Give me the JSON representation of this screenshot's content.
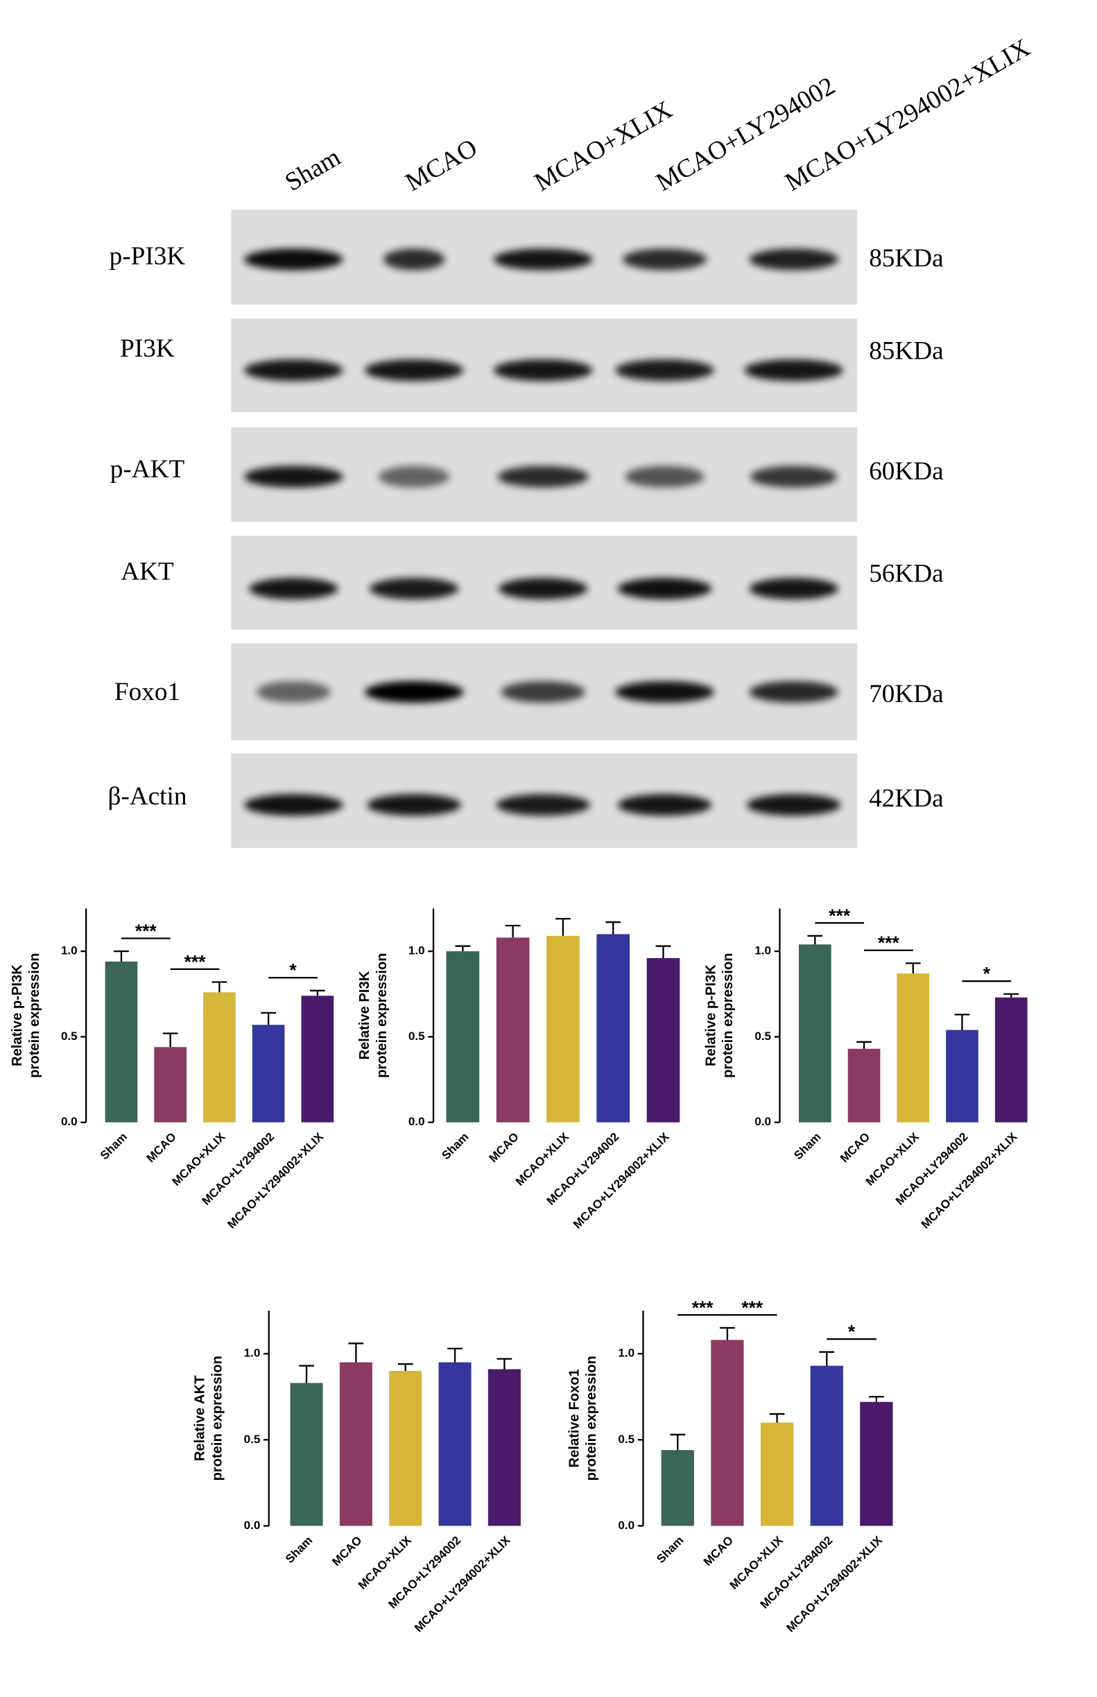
{
  "blot": {
    "lanes": [
      "Sham",
      "MCAO",
      "MCAO+XLIX",
      "MCAO+LY294002",
      "MCAO+LY294002+XLIX"
    ],
    "rows": [
      {
        "protein": "p-PI3K",
        "size": "85KDa"
      },
      {
        "protein": "PI3K",
        "size": "85KDa"
      },
      {
        "protein": "p-AKT",
        "size": "60KDa"
      },
      {
        "protein": "AKT",
        "size": "56KDa"
      },
      {
        "protein": "Foxo1",
        "size": "70KDa"
      },
      {
        "protein": "β-Actin",
        "size": "42KDa"
      }
    ]
  },
  "chart_data": [
    {
      "type": "bar",
      "ylabel": [
        "Relative p-PI3K",
        "protein expression"
      ],
      "categories": [
        "Sham",
        "MCAO",
        "MCAO+XLIX",
        "MCAO+LY294002",
        "MCAO+LY294002+XLIX"
      ],
      "values": [
        0.94,
        0.44,
        0.76,
        0.57,
        0.74
      ],
      "errors": [
        0.06,
        0.08,
        0.06,
        0.07,
        0.03
      ],
      "colors": [
        "#3a6656",
        "#8b3a62",
        "#d6b636",
        "#35379e",
        "#4b1a6b"
      ],
      "ylim": [
        0,
        1.25
      ],
      "yticks": [
        {
          "value": 0,
          "label": "0.0"
        },
        {
          "value": 0.5,
          "label": "0.5"
        },
        {
          "value": 1,
          "label": "1.0"
        }
      ],
      "significance": [
        {
          "label": "***",
          "bars": [
            0,
            1
          ]
        },
        {
          "label": "***",
          "bars": [
            1,
            2
          ]
        },
        {
          "label": "*",
          "bars": [
            3,
            4
          ]
        }
      ]
    },
    {
      "type": "bar",
      "ylabel": [
        "Relative PI3K",
        "protein expression"
      ],
      "categories": [
        "Sham",
        "MCAO",
        "MCAO+XLIX",
        "MCAO+LY294002",
        "MCAO+LY294002+XLIX"
      ],
      "values": [
        1.0,
        1.08,
        1.09,
        1.1,
        0.96
      ],
      "errors": [
        0.03,
        0.07,
        0.1,
        0.07,
        0.07
      ],
      "colors": [
        "#3a6656",
        "#8b3a62",
        "#d6b636",
        "#35379e",
        "#4b1a6b"
      ],
      "ylim": [
        0,
        1.25
      ],
      "yticks": [
        {
          "value": 0,
          "label": "0.0"
        },
        {
          "value": 0.5,
          "label": "0.5"
        },
        {
          "value": 1,
          "label": "1.0"
        }
      ],
      "significance": []
    },
    {
      "type": "bar",
      "ylabel": [
        "Relative p-PI3K",
        "protein expression"
      ],
      "categories": [
        "Sham",
        "MCAO",
        "MCAO+XLIX",
        "MCAO+LY294002",
        "MCAO+LY294002+XLIX"
      ],
      "values": [
        1.04,
        0.43,
        0.87,
        0.54,
        0.73
      ],
      "errors": [
        0.05,
        0.04,
        0.06,
        0.09,
        0.02
      ],
      "colors": [
        "#3a6656",
        "#8b3a62",
        "#d6b636",
        "#35379e",
        "#4b1a6b"
      ],
      "ylim": [
        0,
        1.25
      ],
      "yticks": [
        {
          "value": 0,
          "label": "0.0"
        },
        {
          "value": 0.5,
          "label": "0.5"
        },
        {
          "value": 1,
          "label": "1.0"
        }
      ],
      "significance": [
        {
          "label": "***",
          "bars": [
            0,
            1
          ]
        },
        {
          "label": "***",
          "bars": [
            1,
            2
          ]
        },
        {
          "label": "*",
          "bars": [
            3,
            4
          ]
        }
      ]
    },
    {
      "type": "bar",
      "ylabel": [
        "Relative AKT",
        "protein expression"
      ],
      "categories": [
        "Sham",
        "MCAO",
        "MCAO+XLIX",
        "MCAO+LY294002",
        "MCAO+LY294002+XLIX"
      ],
      "values": [
        0.83,
        0.95,
        0.9,
        0.95,
        0.91
      ],
      "errors": [
        0.1,
        0.11,
        0.04,
        0.08,
        0.06
      ],
      "colors": [
        "#3a6656",
        "#8b3a62",
        "#d6b636",
        "#35379e",
        "#4b1a6b"
      ],
      "ylim": [
        0,
        1.25
      ],
      "yticks": [
        {
          "value": 0,
          "label": "0.0"
        },
        {
          "value": 0.5,
          "label": "0.5"
        },
        {
          "value": 1,
          "label": "1.0"
        }
      ],
      "significance": []
    },
    {
      "type": "bar",
      "ylabel": [
        "Relative Foxo1",
        "protein expression"
      ],
      "categories": [
        "Sham",
        "MCAO",
        "MCAO+XLIX",
        "MCAO+LY294002",
        "MCAO+LY294002+XLIX"
      ],
      "values": [
        0.44,
        1.08,
        0.6,
        0.93,
        0.72
      ],
      "errors": [
        0.09,
        0.07,
        0.05,
        0.08,
        0.03
      ],
      "colors": [
        "#3a6656",
        "#8b3a62",
        "#d6b636",
        "#35379e",
        "#4b1a6b"
      ],
      "ylim": [
        0,
        1.25
      ],
      "yticks": [
        {
          "value": 0,
          "label": "0.0"
        },
        {
          "value": 0.5,
          "label": "0.5"
        },
        {
          "value": 1,
          "label": "1.0"
        }
      ],
      "significance": [
        {
          "label": "***",
          "bars": [
            0,
            1
          ]
        },
        {
          "label": "***",
          "bars": [
            1,
            2
          ]
        },
        {
          "label": "*",
          "bars": [
            3,
            4
          ]
        }
      ]
    }
  ]
}
